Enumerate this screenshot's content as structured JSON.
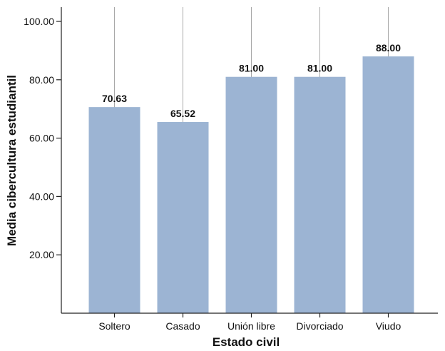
{
  "chart_data": {
    "type": "bar",
    "xlabel": "Estado civil",
    "ylabel": "Media cibercultura estudiantil",
    "categories": [
      "Soltero",
      "Casado",
      "Unión libre",
      "Divorciado",
      "Viudo"
    ],
    "values": [
      70.63,
      65.52,
      81.0,
      81.0,
      88.0
    ],
    "value_labels": [
      "70.63",
      "65.52",
      "81.00",
      "81.00",
      "88.00"
    ],
    "ylim": [
      0,
      100
    ],
    "yticks": [
      20,
      40,
      60,
      80,
      100
    ],
    "ytick_labels": [
      "20.00",
      "40.00",
      "60.00",
      "80.00",
      "100.00"
    ],
    "grid": "vertical gridlines through category centers",
    "legend": "none",
    "bar_color": "#9cb4d3",
    "grid_color": "#a8a8a8",
    "axis_color": "#222222"
  }
}
